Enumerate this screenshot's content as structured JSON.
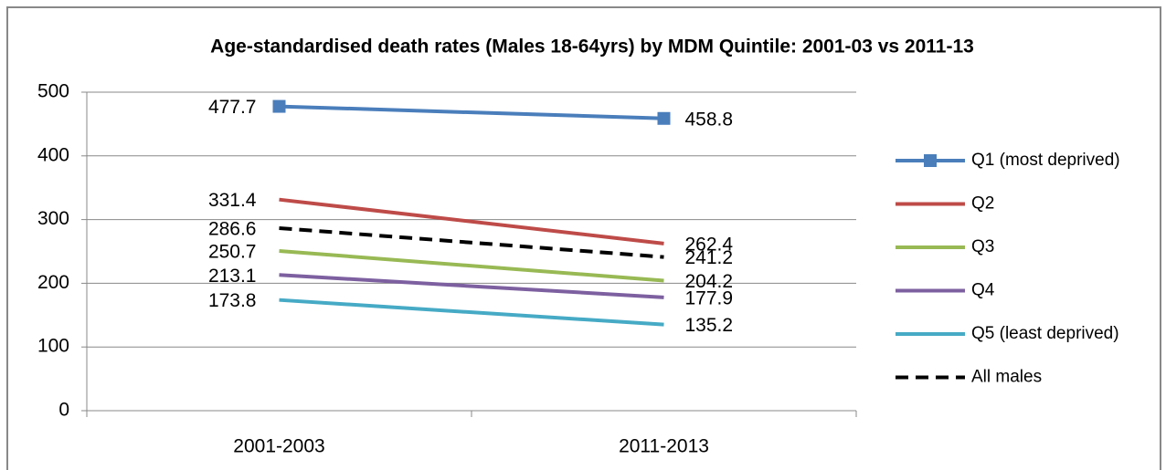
{
  "chart_data": {
    "type": "line",
    "title": "Age-standardised death rates (Males 18-64yrs) by MDM Quintile: 2001-03 vs 2011-13",
    "categories": [
      "2001-2003",
      "2011-2013"
    ],
    "series": [
      {
        "name": "Q1 (most deprived)",
        "color": "#4a7ebb",
        "marker": "square",
        "values": [
          477.7,
          458.8
        ]
      },
      {
        "name": "Q2",
        "color": "#be4b48",
        "values": [
          331.4,
          262.4
        ]
      },
      {
        "name": "Q3",
        "color": "#98b954",
        "values": [
          250.7,
          204.2
        ]
      },
      {
        "name": "Q4",
        "color": "#7d60a0",
        "values": [
          213.1,
          177.9
        ]
      },
      {
        "name": "Q5 (least deprived)",
        "color": "#46aac5",
        "values": [
          173.8,
          135.2
        ]
      },
      {
        "name": "All males",
        "color": "#000000",
        "dash": true,
        "values": [
          286.6,
          241.2
        ]
      }
    ],
    "ylim": [
      0,
      500
    ],
    "yticks": [
      0,
      100,
      200,
      300,
      400,
      500
    ],
    "grid": true,
    "legend": "right"
  }
}
